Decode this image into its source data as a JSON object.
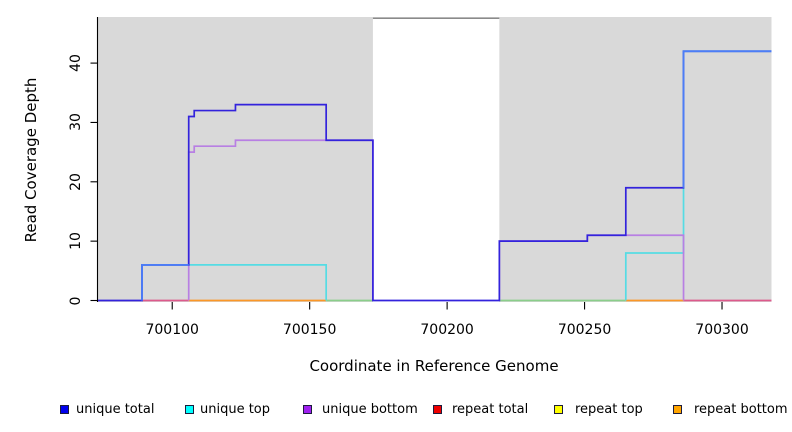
{
  "figure": {
    "background": "#FFFFFF",
    "plot_bg_color": "#D9D9D9",
    "gap_border_color": "#8A8A8A",
    "axis_color": "#000000"
  },
  "chart_data": {
    "type": "line",
    "subtype": "step",
    "title": "",
    "xlabel": "Coordinate in Reference Genome",
    "ylabel": "Read Coverage Depth",
    "xlim": [
      700073,
      700318
    ],
    "ylim": [
      0,
      47.8
    ],
    "x_ticks": [
      700100,
      700150,
      700200,
      700250,
      700300
    ],
    "y_ticks": [
      0,
      10,
      20,
      30,
      40
    ],
    "grid": false,
    "legend_position": "bottom",
    "shaded_regions": [
      {
        "x0": 700073,
        "x1": 700173,
        "color": "#D9D9D9"
      },
      {
        "x0": 700219,
        "x1": 700318,
        "color": "#D9D9D9"
      }
    ],
    "series": [
      {
        "name": "unique total",
        "legend_color": "#0000EE",
        "plot_color": "#3323DC",
        "skip_zero": false,
        "steps": [
          [
            700073,
            0
          ],
          [
            700089,
            6
          ],
          [
            700106,
            31
          ],
          [
            700108,
            32
          ],
          [
            700123,
            33
          ],
          [
            700156,
            27
          ],
          [
            700173,
            0
          ],
          [
            700219,
            10
          ],
          [
            700251,
            11
          ],
          [
            700265,
            19
          ],
          [
            700286,
            42
          ],
          [
            700318,
            42
          ]
        ]
      },
      {
        "name": "unique top",
        "legend_color": "#00FFFF",
        "plot_color": "#55DCE4",
        "skip_zero": true,
        "steps": [
          [
            700073,
            0
          ],
          [
            700089,
            6
          ],
          [
            700156,
            0
          ],
          [
            700265,
            8
          ],
          [
            700286,
            42
          ],
          [
            700318,
            42
          ]
        ]
      },
      {
        "name": "unique bottom",
        "legend_color": "#A020F0",
        "plot_color": "#B87FE3",
        "skip_zero": true,
        "steps": [
          [
            700073,
            0
          ],
          [
            700106,
            25
          ],
          [
            700108,
            26
          ],
          [
            700123,
            27
          ],
          [
            700173,
            0
          ],
          [
            700219,
            10
          ],
          [
            700251,
            11
          ],
          [
            700286,
            0
          ],
          [
            700318,
            0
          ]
        ]
      },
      {
        "name": "repeat total",
        "legend_color": "#EE0000",
        "steps": [
          [
            700073,
            0
          ],
          [
            700318,
            0
          ]
        ]
      },
      {
        "name": "repeat top",
        "legend_color": "#FFFF00",
        "steps": [
          [
            700073,
            0
          ],
          [
            700318,
            0
          ]
        ]
      },
      {
        "name": "repeat bottom",
        "legend_color": "#FFA500",
        "steps": [
          [
            700073,
            0
          ],
          [
            700318,
            0
          ]
        ]
      }
    ],
    "baseline_segments": [
      {
        "x0": 700089,
        "x1": 700106,
        "color": "#DD5A8C"
      },
      {
        "x0": 700106,
        "x1": 700156,
        "color": "#FB9727"
      },
      {
        "x0": 700156,
        "x1": 700173,
        "color": "#8BCE8B"
      },
      {
        "x0": 700219,
        "x1": 700265,
        "color": "#8BCE8B"
      },
      {
        "x0": 700265,
        "x1": 700286,
        "color": "#FB9727"
      },
      {
        "x0": 700286,
        "x1": 700318,
        "color": "#DD5A8C"
      }
    ],
    "highlight_segments": [
      {
        "x0": 700089,
        "x1": 700106,
        "v0": 0,
        "v1": 6,
        "color": "#4C7DF7"
      },
      {
        "x0": 700286,
        "x1": 700318,
        "v0": 19,
        "v1": 42,
        "color": "#4C7DF7"
      }
    ]
  }
}
